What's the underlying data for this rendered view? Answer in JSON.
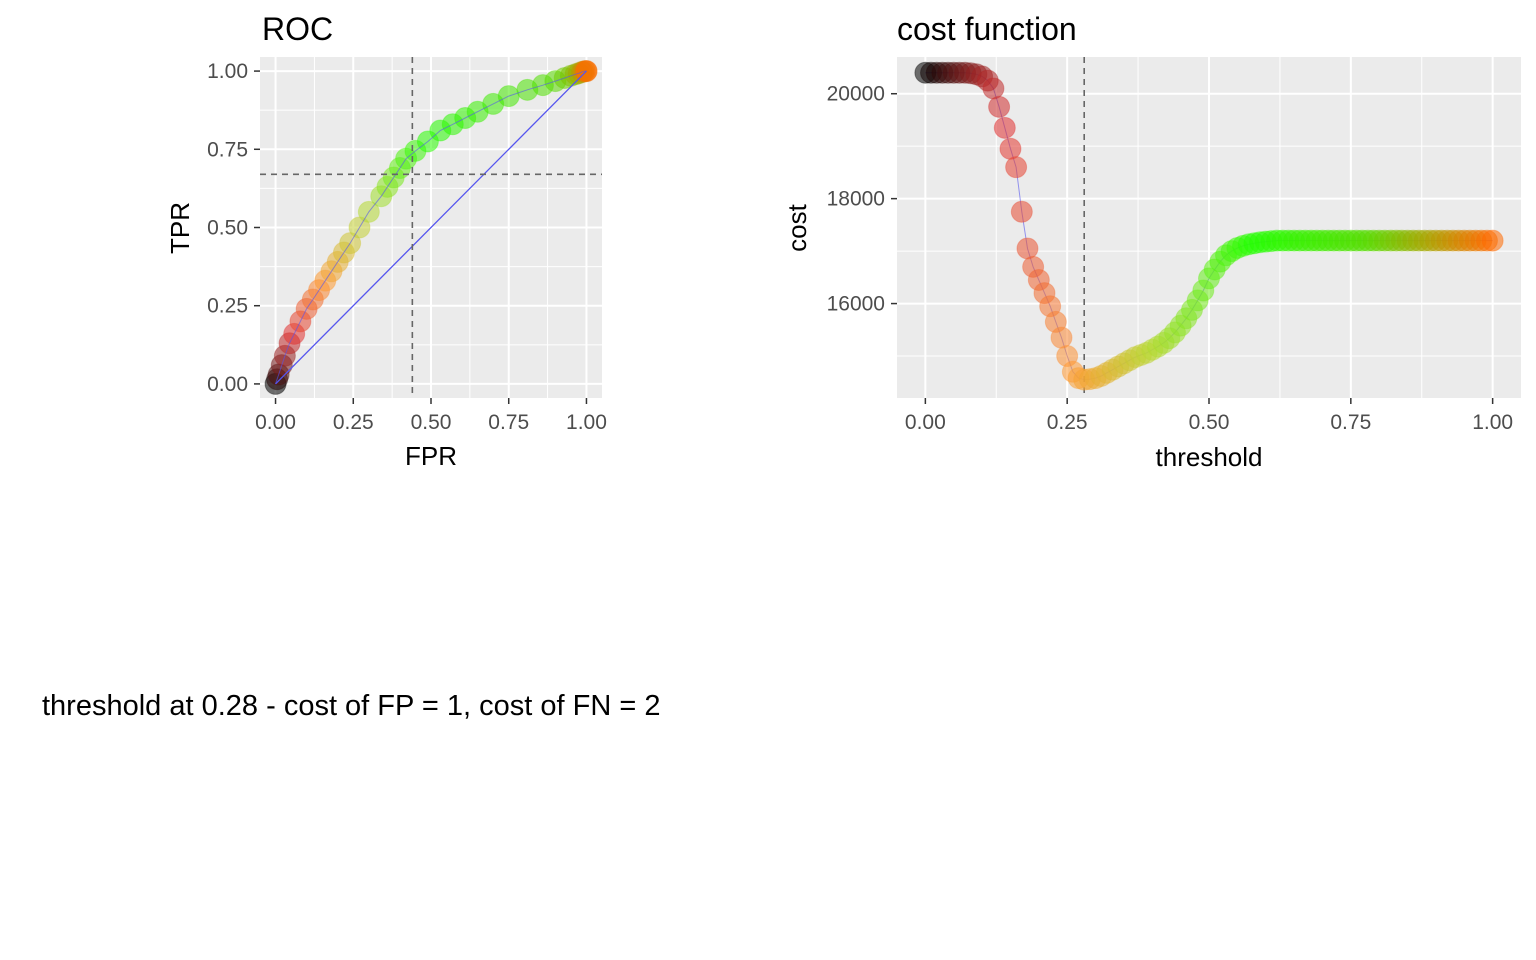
{
  "caption": "threshold at 0.28 - cost of FP = 1, cost of FN = 2",
  "colors": {
    "panel_bg": "#EBEBEB",
    "grid": "#FFFFFF",
    "line": "#5555EE",
    "ref": "#666666"
  },
  "chart_data": [
    {
      "type": "scatter",
      "title": "ROC",
      "xlabel": "FPR",
      "ylabel": "TPR",
      "xlim": [
        -0.05,
        1.05
      ],
      "ylim": [
        -0.045,
        1.045
      ],
      "xticks": [
        "0.00",
        "0.25",
        "0.50",
        "0.75",
        "1.00"
      ],
      "xtick_values": [
        0,
        0.25,
        0.5,
        0.75,
        1
      ],
      "yticks": [
        "0.00",
        "0.25",
        "0.50",
        "0.75",
        "1.00"
      ],
      "ytick_values": [
        0,
        0.25,
        0.5,
        0.75,
        1
      ],
      "grid": true,
      "legend": "none",
      "diagonal": true,
      "vline": 0.44,
      "hline": 0.67,
      "points": [
        {
          "x": 1.0,
          "y": 1.0
        },
        {
          "x": 1.0,
          "y": 1.0
        },
        {
          "x": 0.995,
          "y": 1.0
        },
        {
          "x": 0.99,
          "y": 0.998
        },
        {
          "x": 0.985,
          "y": 0.997
        },
        {
          "x": 0.975,
          "y": 0.993
        },
        {
          "x": 0.965,
          "y": 0.99
        },
        {
          "x": 0.95,
          "y": 0.985
        },
        {
          "x": 0.93,
          "y": 0.978
        },
        {
          "x": 0.9,
          "y": 0.968
        },
        {
          "x": 0.86,
          "y": 0.955
        },
        {
          "x": 0.81,
          "y": 0.94
        },
        {
          "x": 0.75,
          "y": 0.92
        },
        {
          "x": 0.7,
          "y": 0.895
        },
        {
          "x": 0.65,
          "y": 0.87
        },
        {
          "x": 0.61,
          "y": 0.85
        },
        {
          "x": 0.57,
          "y": 0.83
        },
        {
          "x": 0.53,
          "y": 0.81
        },
        {
          "x": 0.49,
          "y": 0.775
        },
        {
          "x": 0.45,
          "y": 0.745
        },
        {
          "x": 0.42,
          "y": 0.72
        },
        {
          "x": 0.4,
          "y": 0.69
        },
        {
          "x": 0.38,
          "y": 0.66
        },
        {
          "x": 0.36,
          "y": 0.63
        },
        {
          "x": 0.34,
          "y": 0.6
        },
        {
          "x": 0.3,
          "y": 0.55
        },
        {
          "x": 0.27,
          "y": 0.5
        },
        {
          "x": 0.24,
          "y": 0.45
        },
        {
          "x": 0.22,
          "y": 0.42
        },
        {
          "x": 0.2,
          "y": 0.39
        },
        {
          "x": 0.18,
          "y": 0.36
        },
        {
          "x": 0.16,
          "y": 0.33
        },
        {
          "x": 0.14,
          "y": 0.3
        },
        {
          "x": 0.12,
          "y": 0.27
        },
        {
          "x": 0.1,
          "y": 0.24
        },
        {
          "x": 0.08,
          "y": 0.2
        },
        {
          "x": 0.06,
          "y": 0.16
        },
        {
          "x": 0.045,
          "y": 0.13
        },
        {
          "x": 0.03,
          "y": 0.09
        },
        {
          "x": 0.02,
          "y": 0.06
        },
        {
          "x": 0.01,
          "y": 0.03
        },
        {
          "x": 0.005,
          "y": 0.015
        },
        {
          "x": 0.0,
          "y": 0.0
        }
      ]
    },
    {
      "type": "scatter",
      "title": "cost function",
      "xlabel": "threshold",
      "ylabel": "cost",
      "xlim": [
        -0.05,
        1.05
      ],
      "ylim": [
        14200,
        20700
      ],
      "xticks": [
        "0.00",
        "0.25",
        "0.50",
        "0.75",
        "1.00"
      ],
      "xtick_values": [
        0,
        0.25,
        0.5,
        0.75,
        1
      ],
      "yticks": [
        "16000",
        "18000",
        "20000"
      ],
      "ytick_values": [
        16000,
        18000,
        20000
      ],
      "grid": true,
      "legend": "none",
      "vline": 0.28,
      "threshold": [
        0.0,
        0.01,
        0.02,
        0.03,
        0.04,
        0.05,
        0.06,
        0.07,
        0.08,
        0.09,
        0.1,
        0.11,
        0.12,
        0.13,
        0.14,
        0.15,
        0.16,
        0.17,
        0.18,
        0.19,
        0.2,
        0.21,
        0.22,
        0.23,
        0.24,
        0.25,
        0.26,
        0.27,
        0.28,
        0.29,
        0.3,
        0.31,
        0.32,
        0.33,
        0.34,
        0.35,
        0.36,
        0.37,
        0.38,
        0.39,
        0.4,
        0.41,
        0.42,
        0.43,
        0.44,
        0.45,
        0.46,
        0.47,
        0.48,
        0.49,
        0.5,
        0.51,
        0.52,
        0.53,
        0.54,
        0.55,
        0.56,
        0.57,
        0.58,
        0.59,
        0.6,
        0.61,
        0.62,
        0.63,
        0.64,
        0.65,
        0.66,
        0.67,
        0.68,
        0.69,
        0.7,
        0.71,
        0.72,
        0.73,
        0.74,
        0.75,
        0.76,
        0.77,
        0.78,
        0.79,
        0.8,
        0.81,
        0.82,
        0.83,
        0.84,
        0.85,
        0.86,
        0.87,
        0.88,
        0.89,
        0.9,
        0.91,
        0.92,
        0.93,
        0.94,
        0.95,
        0.96,
        0.97,
        0.98,
        0.99,
        1.0
      ],
      "cost": [
        20400,
        20400,
        20400,
        20400,
        20400,
        20400,
        20400,
        20400,
        20390,
        20370,
        20330,
        20250,
        20100,
        19750,
        19350,
        18950,
        18600,
        17750,
        17050,
        16700,
        16450,
        16200,
        15950,
        15650,
        15350,
        15000,
        14700,
        14580,
        14550,
        14560,
        14580,
        14620,
        14680,
        14740,
        14800,
        14860,
        14920,
        14980,
        15020,
        15060,
        15120,
        15180,
        15250,
        15340,
        15450,
        15580,
        15720,
        15880,
        16060,
        16250,
        16480,
        16650,
        16800,
        16920,
        17000,
        17060,
        17100,
        17130,
        17150,
        17170,
        17180,
        17190,
        17200,
        17200,
        17200,
        17200,
        17200,
        17200,
        17200,
        17200,
        17200,
        17200,
        17200,
        17200,
        17200,
        17200,
        17200,
        17200,
        17200,
        17200,
        17200,
        17200,
        17200,
        17200,
        17200,
        17200,
        17200,
        17200,
        17200,
        17200,
        17200,
        17200,
        17200,
        17200,
        17200,
        17200,
        17200,
        17200,
        17200,
        17200,
        17200
      ]
    }
  ]
}
